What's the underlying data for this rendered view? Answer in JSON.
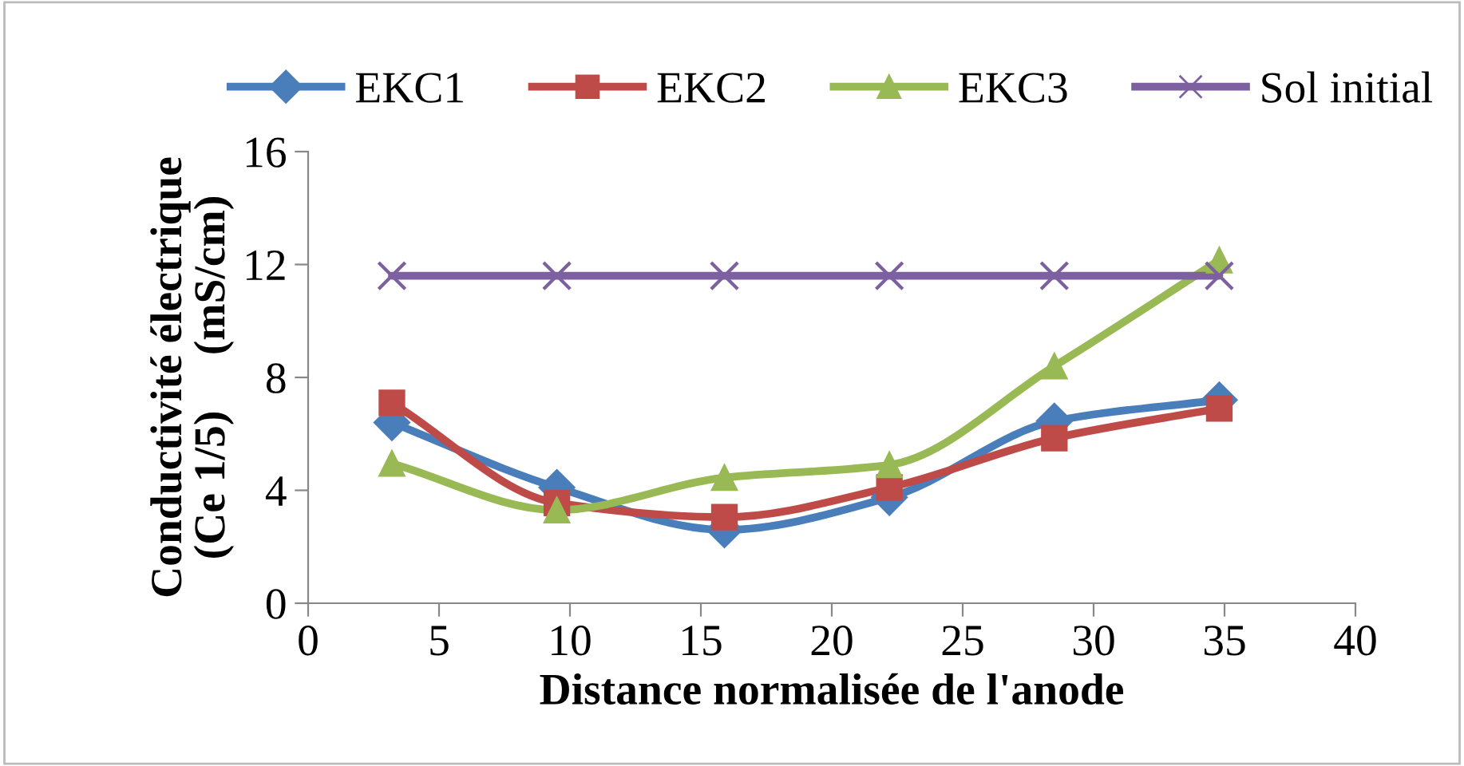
{
  "chart_data": {
    "type": "line",
    "xlabel": "Distance normalisée de l'anode",
    "ylabel": "Conductivité électrique\n(Ce 1/5)     (mS/cm)",
    "x": [
      3.2,
      9.5,
      15.9,
      22.2,
      28.5,
      34.8
    ],
    "series": [
      {
        "name": "EKC1",
        "color": "#4a7ebb",
        "marker": "diamond",
        "values": [
          6.4,
          4.1,
          2.6,
          3.75,
          6.45,
          7.2
        ]
      },
      {
        "name": "EKC2",
        "color": "#be4b48",
        "marker": "square",
        "values": [
          7.1,
          3.55,
          3.05,
          4.1,
          5.85,
          6.9
        ]
      },
      {
        "name": "EKC3",
        "color": "#98b954",
        "marker": "triangle",
        "values": [
          4.95,
          3.3,
          4.45,
          4.9,
          8.4,
          12.15
        ]
      },
      {
        "name": "Sol initial",
        "color": "#7d60a0",
        "marker": "cross",
        "values": [
          11.6,
          11.6,
          11.6,
          11.6,
          11.6,
          11.6
        ]
      }
    ],
    "xlim": [
      0,
      40
    ],
    "xticks": [
      0,
      5,
      10,
      15,
      20,
      25,
      30,
      35,
      40
    ],
    "ylim": [
      0,
      16
    ],
    "yticks": [
      0,
      4,
      8,
      12,
      16
    ],
    "grid": false,
    "legend": "top",
    "line_style": "solid"
  }
}
